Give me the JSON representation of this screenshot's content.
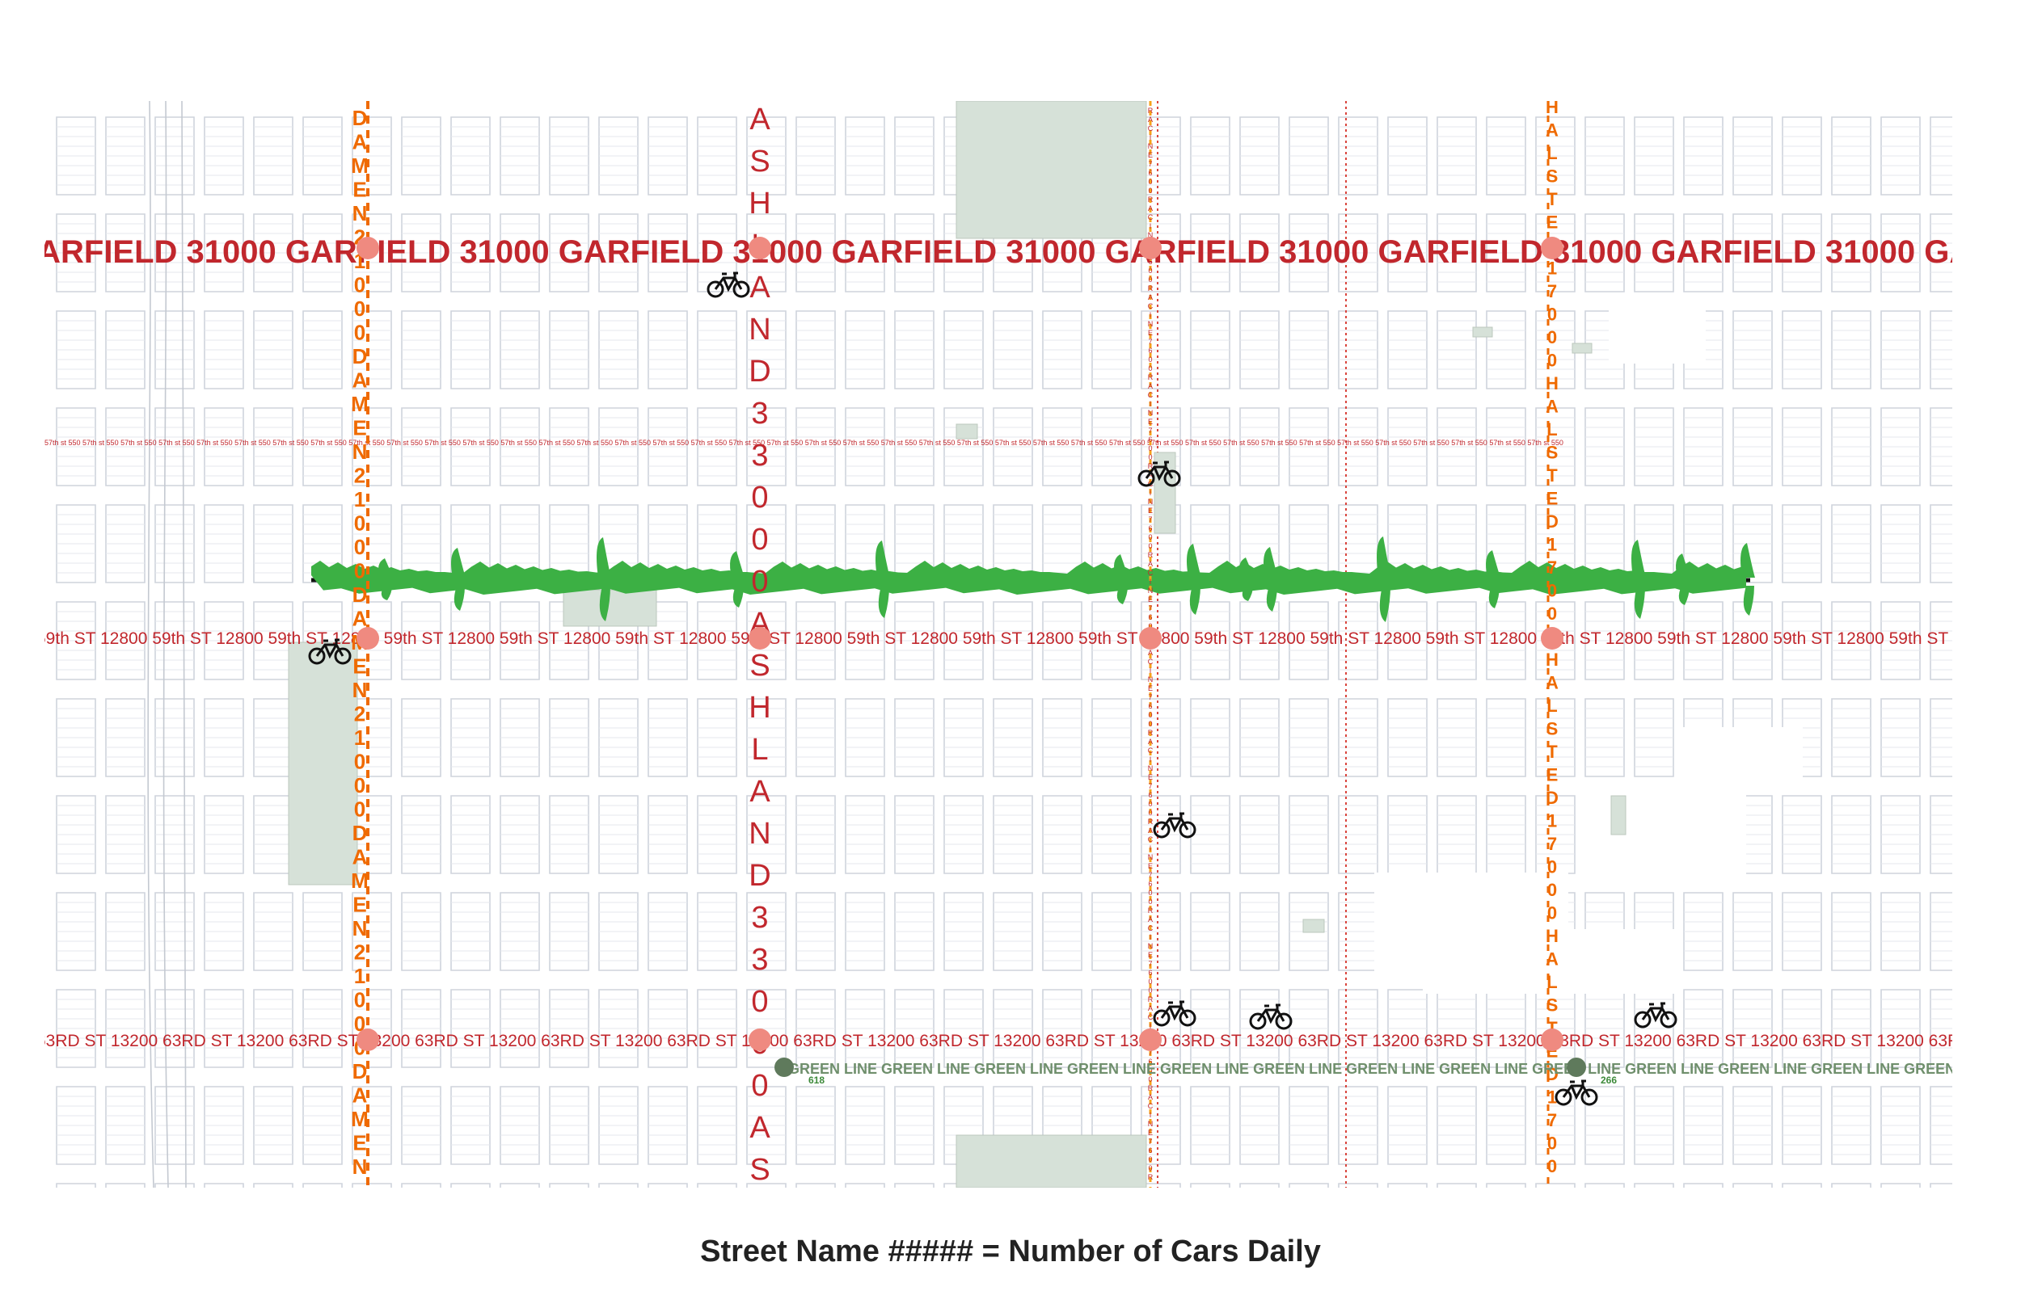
{
  "caption": "Street Name ##### = Number of Cars Daily",
  "colors": {
    "street_label_red": "#c1272d",
    "street_label_orange": "#ef6a00",
    "racine_label": "#f6a21a",
    "intersection_dot": "#ef8a80",
    "park_fill": "#d6e1d8",
    "green_line_label": "#6f8f6c",
    "station_dot": "#5f7a5c",
    "greenway": "#3cb044",
    "rail_track": "#111111",
    "grid_lines": "#cfd4dc"
  },
  "streets": {
    "garfield": "GARFIELD 31000",
    "st57": "57th st 550",
    "st59": "59th ST 12800",
    "st63": "63RD ST 13200",
    "damen": "DAMEN 21000",
    "ashland": "ASHLAND 33000",
    "racine": "RACINE 7600",
    "halsted": "HALSTED 17000"
  },
  "transit": {
    "line_label": "GREEN LINE",
    "stations": [
      {
        "name": "ashland-station",
        "ridership": "618"
      },
      {
        "name": "halsted-station",
        "ridership": "266"
      }
    ]
  },
  "icons": [
    "bicycle-icon",
    "bicycle-icon",
    "bicycle-icon",
    "bicycle-icon",
    "bicycle-icon",
    "bicycle-icon",
    "bicycle-icon",
    "bicycle-icon",
    "bicycle-icon"
  ]
}
